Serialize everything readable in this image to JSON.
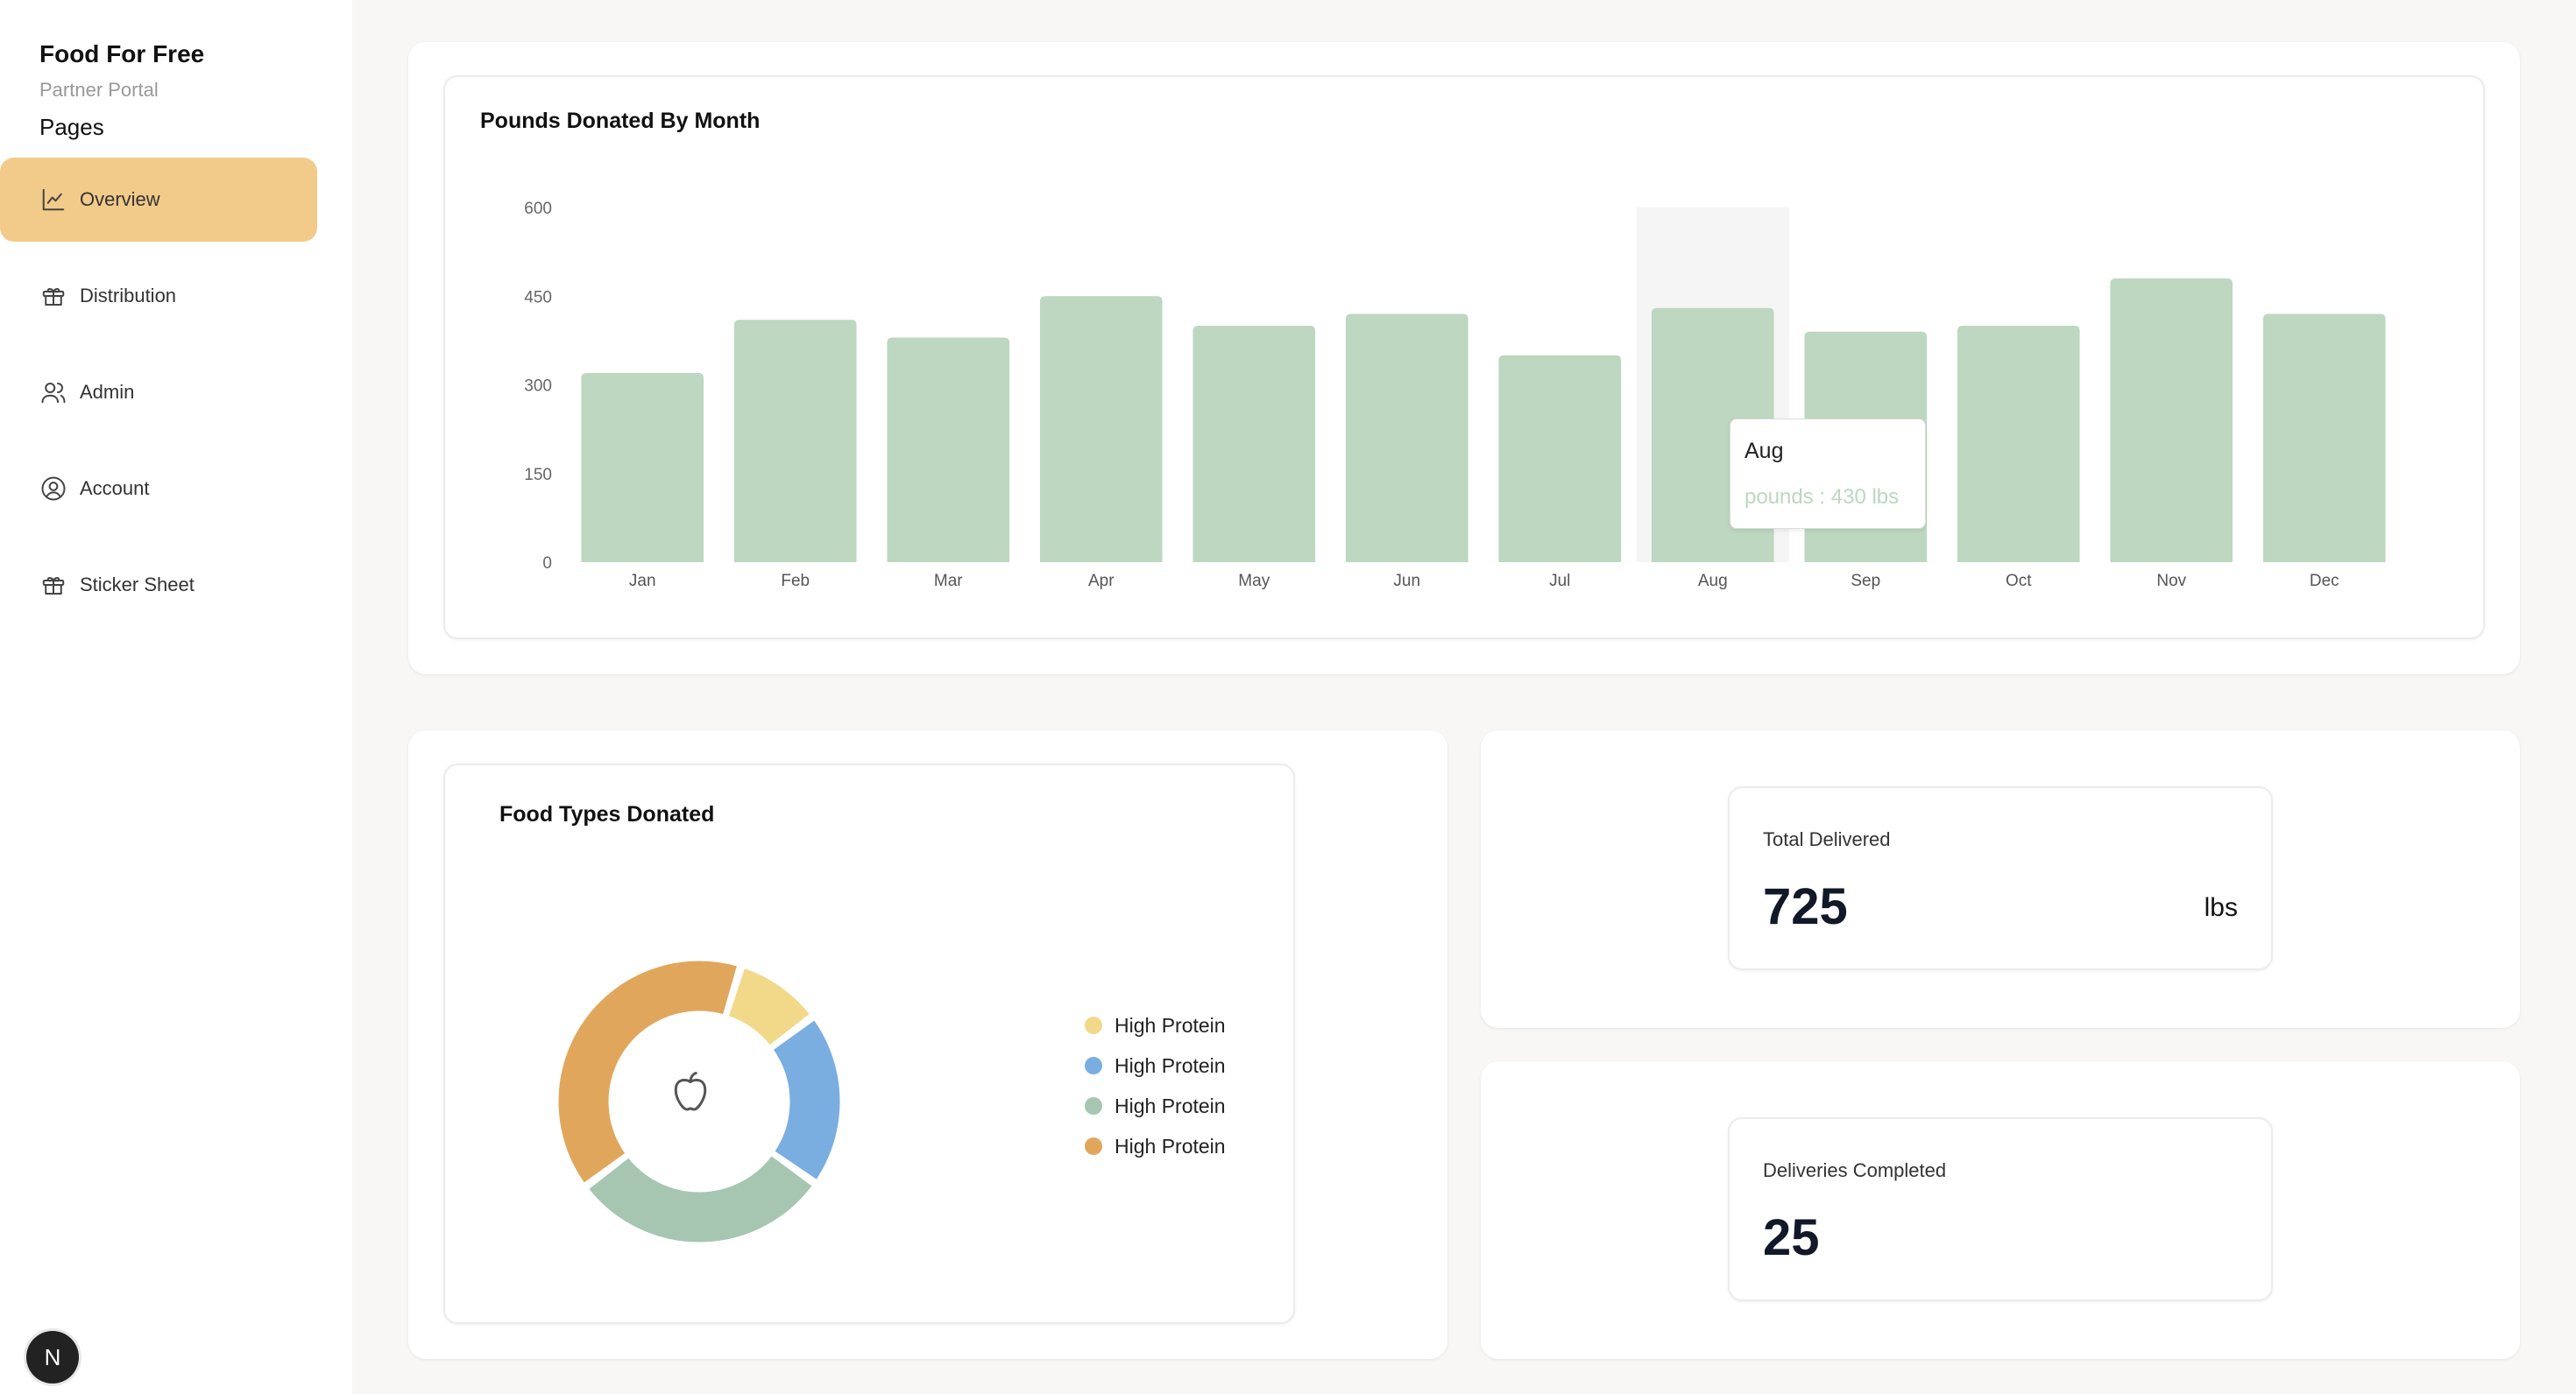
{
  "sidebar": {
    "title": "Food For Free",
    "subtitle": "Partner Portal",
    "pages_label": "Pages",
    "items": [
      {
        "label": "Overview",
        "icon": "line-chart-icon",
        "active": true
      },
      {
        "label": "Distribution",
        "icon": "gift-icon",
        "active": false
      },
      {
        "label": "Admin",
        "icon": "users-icon",
        "active": false
      },
      {
        "label": "Account",
        "icon": "user-circle-icon",
        "active": false
      },
      {
        "label": "Sticker Sheet",
        "icon": "gift-icon",
        "active": false
      }
    ],
    "avatar_letter": "N"
  },
  "bar_card": {
    "title": "Pounds Donated By Month"
  },
  "tooltip": {
    "label": "Aug",
    "value": "pounds : 430 lbs"
  },
  "donut_card": {
    "title": "Food Types Donated",
    "center_icon": "apple-icon",
    "legend": [
      {
        "label": "High Protein",
        "color": "#f2d98a"
      },
      {
        "label": "High Protein",
        "color": "#7aaee0"
      },
      {
        "label": "High Protein",
        "color": "#a6c6b2"
      },
      {
        "label": "High Protein",
        "color": "#e0a75c"
      }
    ]
  },
  "stats": {
    "total_delivered": {
      "label": "Total Delivered",
      "value": "725",
      "unit": "lbs"
    },
    "deliveries_completed": {
      "label": "Deliveries Completed",
      "value": "25"
    }
  },
  "colors": {
    "accent": "#f2cb8a",
    "bar": "#bdd7c0",
    "hover_band": "#f5f5f5"
  },
  "chart_data": [
    {
      "type": "bar",
      "title": "Pounds Donated By Month",
      "categories": [
        "Jan",
        "Feb",
        "Mar",
        "Apr",
        "May",
        "Jun",
        "Jul",
        "Aug",
        "Sep",
        "Oct",
        "Nov",
        "Dec"
      ],
      "values": [
        320,
        410,
        380,
        450,
        400,
        420,
        350,
        430,
        390,
        400,
        480,
        420
      ],
      "ylim": [
        0,
        600
      ],
      "yticks": [
        0,
        150,
        300,
        450,
        600
      ],
      "highlighted": "Aug",
      "grid": false
    },
    {
      "type": "pie",
      "title": "Food Types Donated",
      "categories": [
        "High Protein",
        "High Protein",
        "High Protein",
        "High Protein"
      ],
      "values": [
        10,
        20,
        30,
        40
      ],
      "colors": [
        "#f2d98a",
        "#7aaee0",
        "#a6c6b2",
        "#e0a75c"
      ],
      "donut": true,
      "legend": "right"
    }
  ]
}
